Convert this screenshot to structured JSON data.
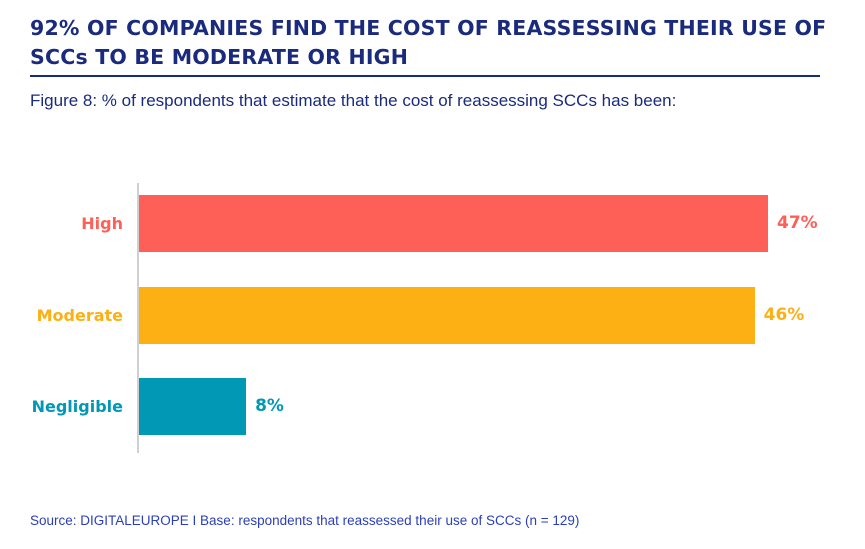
{
  "header": {
    "title": "92% OF COMPANIES FIND THE COST OF REASSESSING THEIR USE OF SCCs TO BE MODERATE OR HIGH",
    "subtitle": "Figure 8: % of respondents that estimate that the cost of reassessing SCCs has been:"
  },
  "chart_data": {
    "type": "bar",
    "orientation": "horizontal",
    "title": "Figure 8: % of respondents that estimate that the cost of reassessing SCCs has been:",
    "categories": [
      "High",
      "Moderate",
      "Negligible"
    ],
    "values": [
      47,
      46,
      8
    ],
    "value_labels": [
      "47%",
      "46%",
      "8%"
    ],
    "colors": [
      "#fe6057",
      "#fdb014",
      "#0198b6"
    ],
    "xlabel": "",
    "ylabel": "",
    "xlim": [
      0,
      50
    ],
    "grid": false,
    "unit": "%"
  },
  "footer": {
    "source": "Source: DIGITALEUROPE I Base: respondents that reassessed their use of SCCs (n = 129)"
  }
}
